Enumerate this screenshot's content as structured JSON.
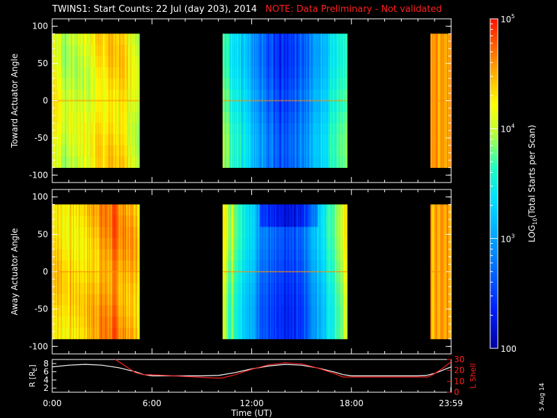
{
  "title": {
    "main": "TWINS1: Start Counts: 22 Jul (day 203), 2014",
    "note": "NOTE: Data Preliminary - Not validated"
  },
  "stamp": "5 Aug 14",
  "chart_data": [
    {
      "type": "heatmap",
      "panel": "top",
      "ylabel": "Toward Actuator Angle",
      "ylim": [
        -110,
        110
      ],
      "yticks": [
        100,
        50,
        0,
        -50,
        -100
      ],
      "angle_range": [
        -90,
        90
      ],
      "x_range_hours": [
        0,
        24
      ],
      "coverage_hours": [
        [
          0.0,
          5.25
        ],
        [
          10.25,
          17.75
        ],
        [
          22.75,
          24.0
        ]
      ],
      "description_of_scale": "log10 counts"
    },
    {
      "type": "heatmap",
      "panel": "middle",
      "ylabel": "Away Actuator Angle",
      "ylim": [
        -110,
        110
      ],
      "yticks": [
        100,
        50,
        0,
        -50,
        -100
      ],
      "angle_range": [
        -90,
        90
      ],
      "x_range_hours": [
        0,
        24
      ],
      "coverage_hours": [
        [
          0.0,
          5.25
        ],
        [
          10.25,
          17.75
        ],
        [
          22.75,
          24.0
        ]
      ]
    },
    {
      "type": "line",
      "panel": "bottom",
      "ylabel_left": "R [R",
      "ylabel_left_sub": "E",
      "ylabel_left_close": "]",
      "ylabel_right": "L Shell",
      "left_ylim": [
        1,
        9
      ],
      "left_yticks": [
        8,
        6,
        4,
        2
      ],
      "right_ylim": [
        0,
        30
      ],
      "right_yticks": [
        30,
        20,
        10,
        0
      ],
      "xlabel": "Time (UT)",
      "xtick_labels": [
        "0:00",
        "6:00",
        "12:00",
        "18:00",
        "23:59"
      ],
      "xtick_hours": [
        0,
        6,
        12,
        18,
        23.98
      ],
      "series": [
        {
          "axis": "left",
          "color": "#ffffff",
          "x": [
            0,
            1,
            2,
            3,
            4,
            5,
            5.5,
            6,
            7,
            8,
            9,
            10,
            11,
            12,
            13,
            14,
            15,
            16,
            17,
            17.5,
            18,
            19,
            20,
            21,
            22,
            22.5,
            23,
            23.5,
            24
          ],
          "y": [
            7.2,
            7.6,
            7.8,
            7.6,
            7.0,
            6.0,
            5.3,
            5.0,
            5.0,
            5.0,
            5.0,
            5.1,
            5.8,
            6.7,
            7.4,
            7.8,
            7.6,
            6.9,
            5.9,
            5.3,
            5.0,
            5.0,
            5.0,
            5.0,
            5.0,
            5.1,
            5.6,
            6.4,
            7.2
          ]
        },
        {
          "axis": "right",
          "color": "#ff2020",
          "x": [
            3.8,
            5.0,
            5.5,
            6.0,
            9.8,
            10.2,
            11.0,
            12.0,
            13.0,
            14.0,
            15.0,
            16.0,
            17.0,
            17.5,
            18.0,
            22.0,
            22.6,
            23.0,
            23.5,
            24.0
          ],
          "y": [
            30,
            18,
            16,
            16,
            13,
            13,
            16,
            21,
            25,
            27,
            26,
            22,
            17,
            14,
            14,
            14,
            14,
            17,
            22,
            28
          ]
        }
      ]
    },
    {
      "type": "colorbar",
      "label": "LOG",
      "label_sub": "10",
      "label_rest": "(Total Starts per Scan)",
      "scale": "log",
      "range": [
        100,
        100000
      ],
      "tick_values": [
        100,
        1000,
        10000,
        100000
      ],
      "tick_labels": [
        {
          "base": "100"
        },
        {
          "base": "10",
          "exp": "3"
        },
        {
          "base": "10",
          "exp": "4"
        },
        {
          "base": "10",
          "exp": "5"
        }
      ]
    }
  ]
}
